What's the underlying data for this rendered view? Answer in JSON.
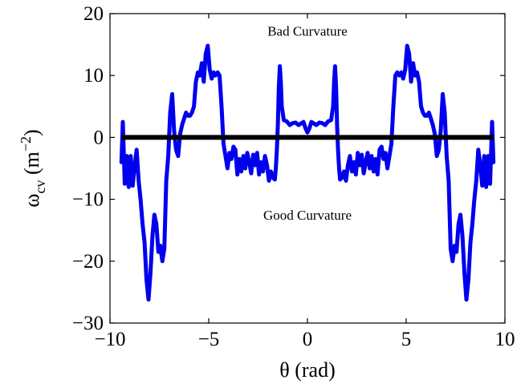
{
  "chart_data": {
    "type": "line",
    "title": "",
    "xlabel": "θ (rad)",
    "ylabel": {
      "main": "ω",
      "sub": "cv",
      "unit_open": " (m",
      "unit_sup": "−2",
      "unit_close": ")"
    },
    "xlim": [
      -10,
      10
    ],
    "ylim": [
      -30,
      20
    ],
    "xticks": [
      -10,
      -5,
      0,
      5,
      10
    ],
    "yticks": [
      -30,
      -20,
      -10,
      0,
      10,
      20
    ],
    "xtick_labels": [
      "−10",
      "−5",
      "0",
      "5",
      "10"
    ],
    "ytick_labels": [
      "−30",
      "−20",
      "−10",
      "0",
      "10",
      "20"
    ],
    "grid": false,
    "legend": null,
    "annotations": [
      {
        "text": "Bad Curvature",
        "x": 0,
        "y": 17.2
      },
      {
        "text": "Good Curvature",
        "x": 0,
        "y": -12.5
      }
    ],
    "series": [
      {
        "color": "#0000ee",
        "symmetric_about_zero": true,
        "x": [
          0,
          0.1,
          0.2,
          0.3,
          0.45,
          0.6,
          0.75,
          0.9,
          1.05,
          1.2,
          1.3,
          1.35,
          1.4,
          1.45,
          1.5,
          1.55,
          1.6,
          1.65,
          1.75,
          1.85,
          1.95,
          2.05,
          2.15,
          2.25,
          2.35,
          2.45,
          2.55,
          2.65,
          2.75,
          2.85,
          2.95,
          3.05,
          3.15,
          3.25,
          3.35,
          3.45,
          3.55,
          3.65,
          3.75,
          3.85,
          3.95,
          4.05,
          4.15,
          4.25,
          4.35,
          4.45,
          4.55,
          4.65,
          4.75,
          4.85,
          4.95,
          5.05,
          5.15,
          5.25,
          5.35,
          5.45,
          5.55,
          5.65,
          5.75,
          5.85,
          5.95,
          6.05,
          6.15,
          6.25,
          6.35,
          6.45,
          6.55,
          6.65,
          6.75,
          6.85,
          6.95,
          7.05,
          7.15,
          7.25,
          7.35,
          7.45,
          7.55,
          7.65,
          7.75,
          7.85,
          7.95,
          8.05,
          8.15,
          8.25,
          8.35,
          8.45,
          8.55,
          8.65,
          8.75,
          8.85,
          8.95,
          9.05,
          9.15,
          9.25,
          9.35,
          9.42
        ],
        "y": [
          0.8,
          1.5,
          2.5,
          2.3,
          2.0,
          2.4,
          2.3,
          2.0,
          2.6,
          2.8,
          5.0,
          9.0,
          11.5,
          8.0,
          2.0,
          -2.0,
          -5.0,
          -6.8,
          -6.5,
          -5.5,
          -7.0,
          -4.5,
          -3.0,
          -5.5,
          -4.0,
          -6.0,
          -2.5,
          -4.5,
          -2.8,
          -5.8,
          -4.0,
          -2.5,
          -5.0,
          -3.0,
          -5.5,
          -3.5,
          -6.0,
          -2.0,
          -1.5,
          -3.5,
          -2.5,
          -5.0,
          -3.0,
          -1.0,
          5.0,
          10.0,
          10.5,
          10.0,
          10.5,
          9.5,
          11.0,
          14.8,
          13.5,
          9.0,
          12.0,
          10.0,
          10.5,
          9.0,
          5.0,
          4.0,
          3.5,
          3.5,
          4.0,
          3.0,
          2.0,
          0.5,
          -3.0,
          -2.0,
          1.0,
          7.0,
          4.0,
          -3.0,
          -7.0,
          -18.0,
          -20.0,
          -17.5,
          -18.5,
          -14.0,
          -12.5,
          -16.0,
          -22.0,
          -26.2,
          -23.0,
          -17.0,
          -14.0,
          -10.0,
          -7.0,
          -2.0,
          -4.5,
          -7.8,
          -3.0,
          -8.0,
          -3.0,
          -7.5,
          2.5,
          -4.0
        ]
      },
      {
        "color": "#000000",
        "x": [
          -9.42,
          9.42
        ],
        "y": [
          0,
          0
        ]
      }
    ]
  }
}
